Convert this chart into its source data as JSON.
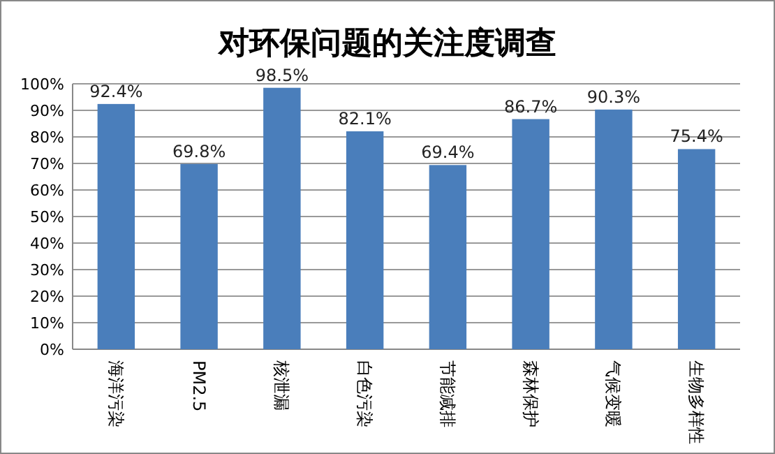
{
  "chart_data": {
    "type": "bar",
    "title": "对环保问题的关注度调查",
    "categories": [
      "海洋污染",
      "PM2.5",
      "核泄漏",
      "白色污染",
      "节能减排",
      "森林保护",
      "气候变暖",
      "生物多样性"
    ],
    "values": [
      92.4,
      69.8,
      98.5,
      82.1,
      69.4,
      86.7,
      90.3,
      75.4
    ],
    "value_labels": [
      "92.4%",
      "69.8%",
      "98.5%",
      "82.1%",
      "69.4%",
      "86.7%",
      "90.3%",
      "75.4%"
    ],
    "color": "#4a7ebb",
    "ylim": [
      0,
      100
    ],
    "yticks": [
      {
        "value": 0,
        "label": "0%"
      },
      {
        "value": 10,
        "label": "10%"
      },
      {
        "value": 20,
        "label": "20%"
      },
      {
        "value": 30,
        "label": "30%"
      },
      {
        "value": 40,
        "label": "40%"
      },
      {
        "value": 50,
        "label": "50%"
      },
      {
        "value": 60,
        "label": "60%"
      },
      {
        "value": 70,
        "label": "70%"
      },
      {
        "value": 80,
        "label": "80%"
      },
      {
        "value": 90,
        "label": "90%"
      },
      {
        "value": 100,
        "label": "100%"
      }
    ],
    "grid": true
  }
}
